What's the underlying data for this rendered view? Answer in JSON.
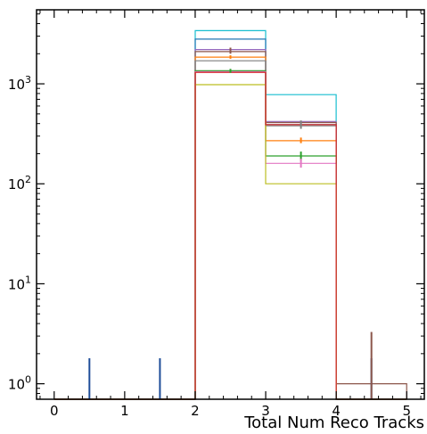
{
  "chart_data": {
    "type": "histogram",
    "xlabel": "Total Num Reco Tracks",
    "ylabel": "",
    "title": "",
    "yscale": "log",
    "xlim": [
      -0.25,
      5.25
    ],
    "ylim": [
      0.7,
      5500
    ],
    "x_ticks": [
      0,
      1,
      2,
      3,
      4,
      5
    ],
    "x_tick_labels": [
      "0",
      "1",
      "2",
      "3",
      "4",
      "5"
    ],
    "y_ticks": [
      1,
      10,
      100,
      1000
    ],
    "y_tick_labels": [
      "10^0",
      "10^1",
      "10^2",
      "10^3"
    ],
    "bin_edges": [
      0,
      1,
      2,
      3,
      4,
      5
    ],
    "grid": false,
    "legend": "none",
    "series": [
      {
        "color": "#17becf",
        "values": [
          0,
          0,
          3400,
          780,
          0
        ]
      },
      {
        "color": "#1f77b4",
        "values": [
          0,
          0,
          2800,
          390,
          0
        ]
      },
      {
        "color": "#9467bd",
        "values": [
          0,
          0,
          2200,
          420,
          0
        ]
      },
      {
        "color": "#8c564b",
        "values": [
          0,
          0,
          2100,
          410,
          1
        ]
      },
      {
        "color": "#ff7f0e",
        "values": [
          0,
          0,
          1850,
          270,
          0
        ]
      },
      {
        "color": "#7f7f7f",
        "values": [
          0,
          0,
          1700,
          380,
          0
        ]
      },
      {
        "color": "#2ca02c",
        "values": [
          0,
          0,
          1350,
          190,
          0
        ]
      },
      {
        "color": "#e377c2",
        "values": [
          0,
          0,
          1320,
          160,
          0
        ]
      },
      {
        "color": "#bcbd22",
        "values": [
          0,
          0,
          980,
          100,
          0
        ]
      },
      {
        "color": "#d62728",
        "values": [
          0,
          0,
          1300,
          390,
          0
        ]
      }
    ],
    "error_bars": [
      {
        "color": "#1f4e99",
        "x": 0.5,
        "low": 0.3,
        "high": 1.8
      },
      {
        "color": "#1f4e99",
        "x": 1.5,
        "low": 0.3,
        "high": 1.8
      },
      {
        "color": "#1f4e99",
        "x": 4.5,
        "low": 0.3,
        "high": 1.8
      },
      {
        "color": "#8c564b",
        "x": 4.5,
        "low": 0.4,
        "high": 3.3
      },
      {
        "color": "#8c564b",
        "x": 2.5,
        "low": 2000,
        "high": 2300
      },
      {
        "color": "#7f7f7f",
        "x": 3.5,
        "low": 355,
        "high": 430
      },
      {
        "color": "#2ca02c",
        "x": 3.5,
        "low": 170,
        "high": 210
      },
      {
        "color": "#ff7f0e",
        "x": 3.5,
        "low": 255,
        "high": 290
      },
      {
        "color": "#e377c2",
        "x": 3.5,
        "low": 145,
        "high": 178
      },
      {
        "color": "#ff7f0e",
        "x": 2.5,
        "low": 1780,
        "high": 1930
      },
      {
        "color": "#2ca02c",
        "x": 2.5,
        "low": 1290,
        "high": 1410
      }
    ]
  }
}
